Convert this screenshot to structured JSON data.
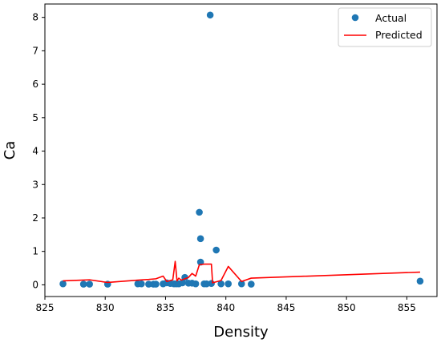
{
  "chart_data": {
    "type": "scatter",
    "title": "",
    "xlabel": "Density",
    "ylabel": "Ca",
    "xlim": [
      825,
      857.5
    ],
    "ylim": [
      -0.35,
      8.4
    ],
    "xticks": [
      825,
      830,
      835,
      840,
      845,
      850,
      855
    ],
    "yticks": [
      0,
      1,
      2,
      3,
      4,
      5,
      6,
      7,
      8
    ],
    "grid": false,
    "legend_position": "top-right",
    "series": [
      {
        "name": "Actual",
        "kind": "scatter",
        "color": "#1f77b4",
        "x": [
          826.5,
          828.2,
          828.7,
          830.2,
          832.7,
          833.0,
          833.6,
          834.0,
          834.2,
          834.8,
          835.1,
          835.4,
          835.7,
          835.9,
          836.1,
          836.4,
          836.6,
          836.9,
          837.2,
          837.5,
          837.8,
          837.9,
          837.9,
          838.2,
          838.4,
          838.7,
          838.8,
          839.2,
          839.6,
          840.2,
          841.3,
          842.1,
          856.1
        ],
        "y": [
          0.03,
          0.02,
          0.02,
          0.02,
          0.03,
          0.03,
          0.02,
          0.02,
          0.02,
          0.03,
          0.06,
          0.04,
          0.03,
          0.03,
          0.03,
          0.06,
          0.22,
          0.05,
          0.05,
          0.03,
          2.17,
          1.38,
          0.68,
          0.03,
          0.03,
          8.07,
          0.04,
          1.04,
          0.03,
          0.03,
          0.03,
          0.02,
          0.11
        ]
      },
      {
        "name": "Predicted",
        "kind": "line",
        "color": "#ff0000",
        "x": [
          826.5,
          828.7,
          830.2,
          832.7,
          833.6,
          834.2,
          834.8,
          835.1,
          835.6,
          835.8,
          835.95,
          836.1,
          836.3,
          836.6,
          836.9,
          837.2,
          837.5,
          837.8,
          838.2,
          838.8,
          838.9,
          839.6,
          840.2,
          841.3,
          842.1,
          856.1
        ],
        "y": [
          0.12,
          0.15,
          0.07,
          0.14,
          0.16,
          0.18,
          0.26,
          0.1,
          0.15,
          0.7,
          0.12,
          0.2,
          0.14,
          0.18,
          0.22,
          0.34,
          0.26,
          0.6,
          0.62,
          0.62,
          0.06,
          0.13,
          0.55,
          0.1,
          0.2,
          0.38
        ]
      }
    ]
  }
}
